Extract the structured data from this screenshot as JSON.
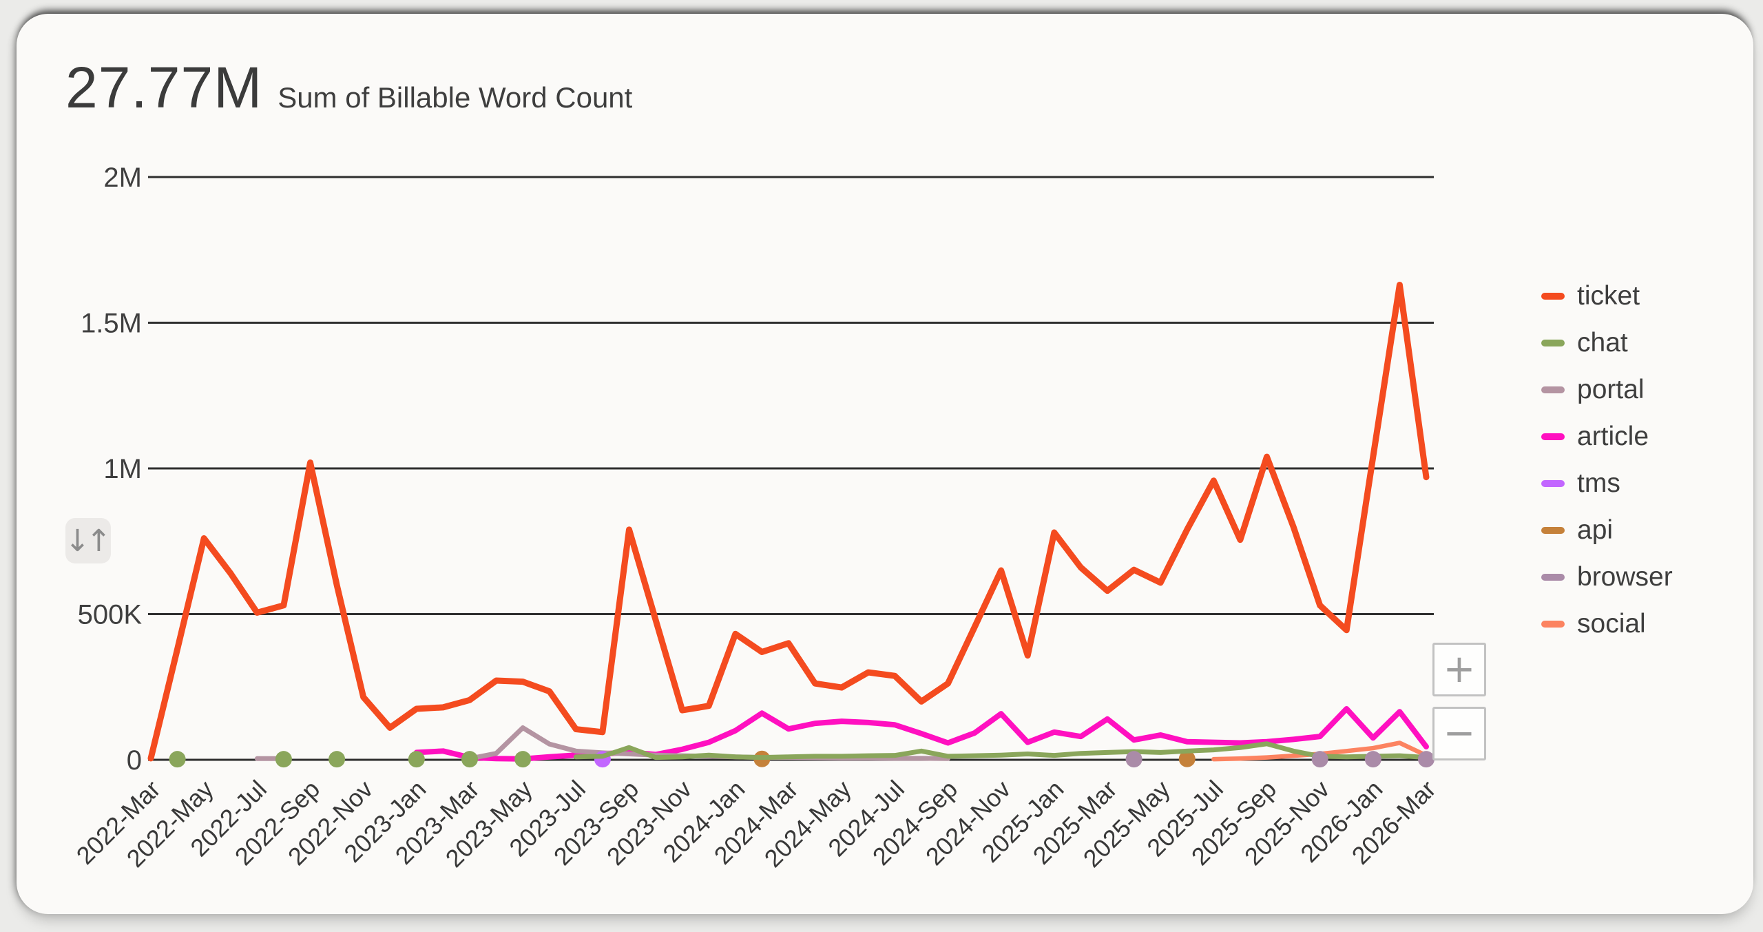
{
  "header": {
    "total": "27.77M",
    "subtitle": "Sum of Billable Word Count"
  },
  "controls": {
    "sort_glyph": "↓↑",
    "zoom_in_label": "+",
    "zoom_out_label": "−"
  },
  "chart_data": {
    "type": "line",
    "title": "Sum of Billable Word Count",
    "total_label": "27.77M",
    "grid": "horizontal",
    "legend_position": "right",
    "y_axis": {
      "min": 0,
      "max": 2000000,
      "ticks": [
        {
          "label": "2M",
          "value": 2000000
        },
        {
          "label": "1.5M",
          "value": 1500000
        },
        {
          "label": "1M",
          "value": 1000000
        },
        {
          "label": "500K",
          "value": 500000
        },
        {
          "label": "0",
          "value": 0
        }
      ]
    },
    "x": [
      "2022-Mar",
      "2022-Apr",
      "2022-May",
      "2022-Jun",
      "2022-Jul",
      "2022-Aug",
      "2022-Sep",
      "2022-Oct",
      "2022-Nov",
      "2022-Dec",
      "2023-Jan",
      "2023-Feb",
      "2023-Mar",
      "2023-Apr",
      "2023-May",
      "2023-Jun",
      "2023-Jul",
      "2023-Aug",
      "2023-Sep",
      "2023-Oct",
      "2023-Nov",
      "2023-Dec",
      "2024-Jan",
      "2024-Feb",
      "2024-Mar",
      "2024-Apr",
      "2024-May",
      "2024-Jun",
      "2024-Jul",
      "2024-Aug",
      "2024-Sep",
      "2024-Oct",
      "2024-Nov",
      "2024-Dec",
      "2025-Jan",
      "2025-Feb",
      "2025-Mar",
      "2025-Apr",
      "2025-May",
      "2025-Jun",
      "2025-Jul",
      "2025-Aug",
      "2025-Sep",
      "2025-Oct",
      "2025-Nov",
      "2025-Dec",
      "2026-Jan",
      "2026-Feb",
      "2026-Mar"
    ],
    "x_axis_tick_labels": [
      "2022-Mar",
      "2022-May",
      "2022-Jul",
      "2022-Sep",
      "2022-Nov",
      "2023-Jan",
      "2023-Mar",
      "2023-May",
      "2023-Jul",
      "2023-Sep",
      "2023-Nov",
      "2024-Jan",
      "2024-Mar",
      "2024-May",
      "2024-Jul",
      "2024-Sep",
      "2024-Nov",
      "2025-Jan",
      "2025-Mar",
      "2025-May",
      "2025-Jul",
      "2025-Sep",
      "2025-Nov",
      "2026-Jan",
      "2026-Mar"
    ],
    "series": [
      {
        "name": "ticket",
        "color": "#f44b1f",
        "values": [
          5000,
          380000,
          760000,
          640000,
          505000,
          530000,
          1020000,
          600000,
          215000,
          110000,
          175000,
          180000,
          205000,
          272000,
          268000,
          235000,
          105000,
          95000,
          790000,
          480000,
          170000,
          185000,
          432000,
          370000,
          400000,
          262000,
          248000,
          300000,
          288000,
          200000,
          262000,
          455000,
          650000,
          358000,
          780000,
          660000,
          580000,
          652000,
          608000,
          790000,
          958000,
          755000,
          1040000,
          800000,
          530000,
          445000,
          1040000,
          1630000,
          970000
        ]
      },
      {
        "name": "chat",
        "color": "#8aa65b",
        "values": [
          null,
          2000,
          null,
          null,
          null,
          2000,
          null,
          2000,
          null,
          null,
          2000,
          null,
          2000,
          null,
          2000,
          null,
          10000,
          12000,
          42000,
          8000,
          10000,
          16000,
          10000,
          8000,
          10000,
          12000,
          12000,
          14000,
          15000,
          30000,
          12000,
          14000,
          16000,
          20000,
          15000,
          22000,
          25000,
          28000,
          25000,
          30000,
          34000,
          42000,
          55000,
          30000,
          12000,
          10000,
          12000,
          14000,
          8000
        ]
      },
      {
        "name": "portal",
        "color": "#b494a2",
        "values": [
          null,
          null,
          null,
          null,
          4000,
          4000,
          null,
          null,
          null,
          null,
          null,
          null,
          4000,
          22000,
          110000,
          54000,
          30000,
          24000,
          20000,
          16000,
          14000,
          12000,
          10000,
          8000,
          8000,
          7000,
          6000,
          6000,
          5000,
          5000,
          4000,
          null,
          null,
          null,
          null,
          null,
          null,
          null,
          null,
          null,
          null,
          null,
          null,
          null,
          null,
          null,
          null,
          null,
          null
        ]
      },
      {
        "name": "article",
        "color": "#ff10c0",
        "values": [
          null,
          null,
          null,
          null,
          null,
          null,
          null,
          null,
          null,
          null,
          25000,
          30000,
          8000,
          4000,
          3000,
          10000,
          16000,
          20000,
          26000,
          18000,
          36000,
          60000,
          100000,
          160000,
          106000,
          125000,
          132000,
          128000,
          120000,
          90000,
          58000,
          92000,
          158000,
          60000,
          95000,
          80000,
          140000,
          68000,
          85000,
          62000,
          60000,
          58000,
          62000,
          70000,
          80000,
          175000,
          75000,
          165000,
          45000
        ]
      },
      {
        "name": "tms",
        "color": "#c266ff",
        "values": [
          null,
          null,
          null,
          null,
          null,
          null,
          null,
          null,
          null,
          null,
          null,
          null,
          null,
          null,
          null,
          null,
          null,
          2000,
          null,
          null,
          null,
          null,
          null,
          null,
          null,
          null,
          null,
          null,
          null,
          null,
          null,
          null,
          null,
          null,
          null,
          null,
          null,
          null,
          null,
          null,
          null,
          null,
          null,
          null,
          null,
          null,
          null,
          null,
          null
        ]
      },
      {
        "name": "api",
        "color": "#c5813a",
        "values": [
          null,
          null,
          null,
          null,
          null,
          null,
          null,
          null,
          null,
          null,
          null,
          null,
          null,
          null,
          null,
          null,
          null,
          null,
          null,
          null,
          null,
          null,
          null,
          3000,
          null,
          null,
          null,
          null,
          null,
          null,
          null,
          null,
          null,
          null,
          null,
          null,
          null,
          null,
          null,
          3000,
          null,
          null,
          null,
          null,
          null,
          null,
          null,
          null,
          null
        ]
      },
      {
        "name": "browser",
        "color": "#aa8ba8",
        "values": [
          null,
          null,
          null,
          null,
          null,
          null,
          null,
          null,
          null,
          null,
          null,
          null,
          null,
          null,
          null,
          null,
          null,
          null,
          null,
          null,
          null,
          null,
          null,
          null,
          null,
          null,
          null,
          null,
          null,
          null,
          null,
          null,
          null,
          null,
          null,
          null,
          null,
          2000,
          null,
          null,
          null,
          null,
          null,
          null,
          2000,
          null,
          2000,
          null,
          2000
        ]
      },
      {
        "name": "social",
        "color": "#fc8360",
        "values": [
          null,
          null,
          null,
          null,
          null,
          null,
          null,
          null,
          null,
          null,
          null,
          null,
          null,
          null,
          null,
          null,
          null,
          null,
          null,
          null,
          null,
          null,
          null,
          null,
          null,
          null,
          null,
          null,
          null,
          null,
          null,
          null,
          null,
          null,
          null,
          null,
          null,
          null,
          null,
          null,
          2000,
          4000,
          8000,
          14000,
          20000,
          30000,
          40000,
          58000,
          15000
        ]
      }
    ]
  }
}
